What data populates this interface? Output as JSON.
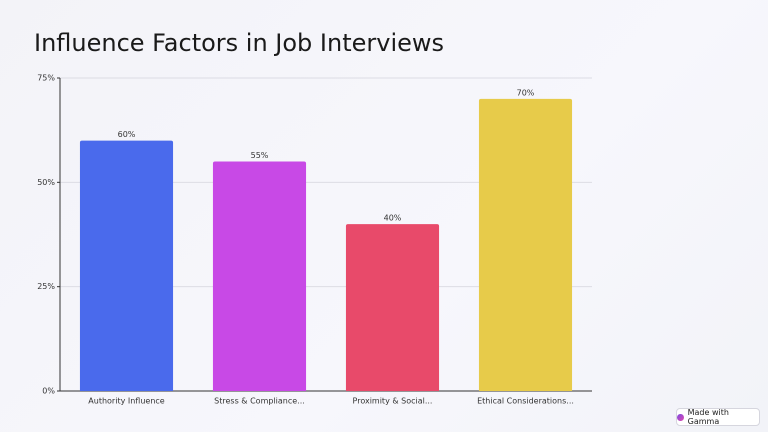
{
  "chart_data": {
    "type": "bar",
    "title": "Influence Factors in Job Interviews",
    "categories": [
      "Authority Influence",
      "Stress & Compliance...",
      "Proximity & Social...",
      "Ethical Considerations..."
    ],
    "values": [
      60,
      55,
      40,
      70
    ],
    "value_labels": [
      "60%",
      "55%",
      "40%",
      "70%"
    ],
    "colors": [
      "#4a6aec",
      "#c849e6",
      "#e84a6a",
      "#e7cb4a"
    ],
    "ylim": [
      0,
      75
    ],
    "yticks": [
      {
        "value": 0,
        "label": "0%"
      },
      {
        "value": 25,
        "label": "25%"
      },
      {
        "value": 50,
        "label": "50%"
      },
      {
        "value": 75,
        "label": "75%"
      }
    ],
    "grid": true
  },
  "badge": "Made with Gamma"
}
